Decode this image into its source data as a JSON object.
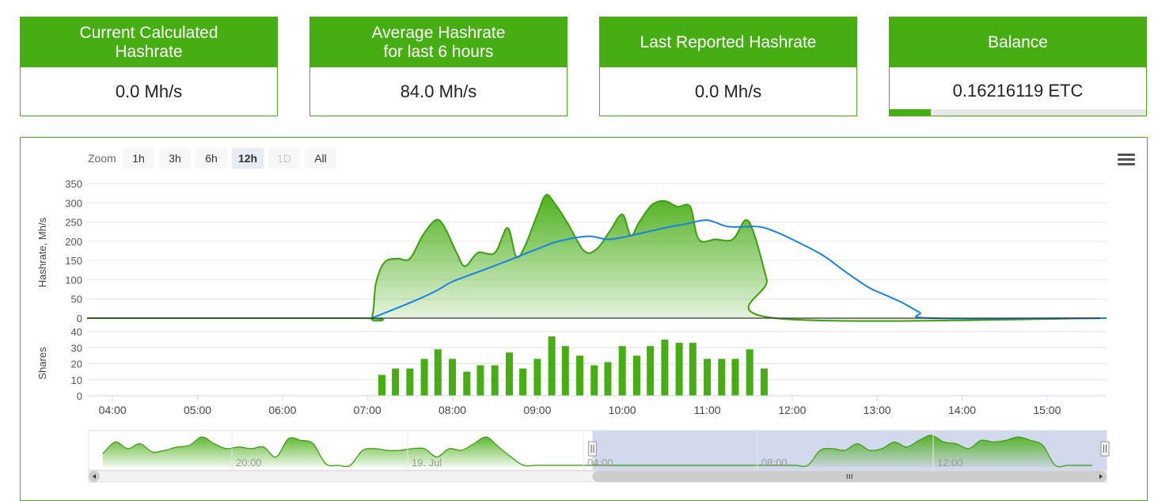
{
  "cards": [
    {
      "title": "Current Calculated\nHashrate",
      "value": "0.0 Mh/s"
    },
    {
      "title": "Average Hashrate\nfor last 6 hours",
      "value": "84.0 Mh/s"
    },
    {
      "title": "Last Reported Hashrate",
      "value": "0.0 Mh/s"
    },
    {
      "title": "Balance",
      "value": "0.16216119 ETC",
      "progress": 0.16
    }
  ],
  "colors": {
    "accent": "#46ad13",
    "average_line": "#1a82e0",
    "navigator_mask": "#cdd5ea"
  },
  "zoom": {
    "label": "Zoom",
    "buttons": [
      {
        "label": "1h",
        "state": "normal"
      },
      {
        "label": "3h",
        "state": "normal"
      },
      {
        "label": "6h",
        "state": "normal"
      },
      {
        "label": "12h",
        "state": "selected"
      },
      {
        "label": "1D",
        "state": "disabled"
      },
      {
        "label": "All",
        "state": "normal"
      }
    ]
  },
  "menu_icon": "hamburger-icon",
  "chart_data": [
    {
      "type": "area",
      "ylabel": "Hashrate, Mh/s",
      "ylim": [
        0,
        350
      ],
      "yticks": [
        0,
        50,
        100,
        150,
        200,
        250,
        300,
        350
      ],
      "xlim": [
        3.7,
        15.7
      ],
      "grid": true,
      "series": [
        {
          "kind": "area",
          "x": [
            3.7,
            6.9,
            7.05,
            7.1,
            7.2,
            7.35,
            7.5,
            7.65,
            7.8,
            7.9,
            8.05,
            8.15,
            8.3,
            8.5,
            8.65,
            8.75,
            8.85,
            9.0,
            9.1,
            9.2,
            9.35,
            9.55,
            9.7,
            9.85,
            10.0,
            10.1,
            10.2,
            10.35,
            10.5,
            10.65,
            10.8,
            10.9,
            11.1,
            11.3,
            11.45,
            11.55,
            11.7,
            11.8,
            15.7
          ],
          "y": [
            0,
            0,
            0,
            90,
            145,
            155,
            155,
            215,
            255,
            240,
            170,
            135,
            170,
            170,
            235,
            160,
            185,
            270,
            320,
            300,
            250,
            175,
            180,
            225,
            270,
            215,
            250,
            295,
            305,
            290,
            290,
            205,
            205,
            205,
            255,
            220,
            100,
            0,
            0
          ]
        },
        {
          "kind": "line",
          "x": [
            7.05,
            7.5,
            7.8,
            8.0,
            8.3,
            8.6,
            9.0,
            9.25,
            9.6,
            9.85,
            10.2,
            10.5,
            10.75,
            11.0,
            11.25,
            11.6,
            11.8,
            12.0,
            12.35,
            12.6,
            12.9,
            13.1,
            13.3,
            13.5,
            13.65,
            15.7
          ],
          "y": [
            0,
            40,
            70,
            95,
            120,
            145,
            180,
            200,
            213,
            205,
            220,
            235,
            245,
            255,
            238,
            238,
            225,
            205,
            165,
            125,
            80,
            60,
            40,
            15,
            0,
            0
          ]
        }
      ]
    },
    {
      "type": "bar",
      "ylabel": "Shares",
      "ylim": [
        0,
        40
      ],
      "yticks": [
        0,
        10,
        20,
        30,
        40
      ],
      "x": [
        7.17,
        7.33,
        7.5,
        7.67,
        7.83,
        8.0,
        8.17,
        8.33,
        8.5,
        8.67,
        8.83,
        9.0,
        9.17,
        9.33,
        9.5,
        9.67,
        9.83,
        10.0,
        10.17,
        10.33,
        10.5,
        10.67,
        10.83,
        11.0,
        11.17,
        11.33,
        11.5,
        11.67
      ],
      "values": [
        13,
        17,
        17,
        23,
        29,
        23,
        15,
        19,
        19,
        27,
        17,
        23,
        37,
        31,
        25,
        19,
        21,
        31,
        25,
        31,
        35,
        33,
        33,
        23,
        23,
        23,
        29,
        17
      ],
      "xticks": [
        "04:00",
        "05:00",
        "06:00",
        "07:00",
        "08:00",
        "09:00",
        "10:00",
        "11:00",
        "12:00",
        "13:00",
        "14:00",
        "15:00"
      ]
    },
    {
      "type": "area",
      "role": "navigator",
      "x": [
        0,
        1,
        2,
        3,
        4,
        5,
        6,
        7,
        8,
        9,
        10,
        11,
        12,
        13,
        14,
        15,
        16,
        17,
        18,
        19,
        20,
        21,
        22,
        23,
        24,
        25,
        26,
        27,
        28,
        29,
        30,
        31,
        32,
        33,
        34,
        35,
        36,
        37,
        38,
        39,
        40,
        41,
        42,
        43,
        44,
        45,
        46,
        47,
        48,
        49,
        50,
        51,
        52,
        53,
        54,
        55,
        56,
        57,
        58,
        59,
        60,
        61,
        62,
        63,
        64,
        65,
        66,
        67,
        68,
        69,
        70,
        71,
        72,
        73,
        74,
        75,
        76,
        77,
        78,
        79,
        80
      ],
      "y": [
        0.4,
        0.75,
        0.55,
        0.7,
        0.45,
        0.5,
        0.6,
        0.65,
        0.9,
        0.7,
        0.55,
        0.6,
        0.55,
        0.6,
        0.3,
        0.85,
        0.8,
        0.7,
        0.1,
        0.05,
        0.05,
        0.5,
        0.55,
        0.5,
        0.5,
        0.55,
        0.55,
        0.3,
        0.55,
        0.5,
        0.7,
        0.9,
        0.6,
        0.3,
        0.05,
        0.05,
        0.05,
        0.05,
        0.05,
        0.05,
        0.05,
        0.05,
        0.05,
        0.05,
        0.05,
        0.05,
        0.05,
        0.05,
        0.05,
        0.05,
        0.05,
        0.05,
        0.05,
        0.05,
        0.05,
        0.05,
        0.05,
        0.05,
        0.5,
        0.55,
        0.5,
        0.7,
        0.5,
        0.55,
        0.75,
        0.6,
        0.8,
        0.95,
        0.75,
        0.7,
        0.55,
        0.8,
        0.75,
        0.8,
        0.9,
        0.8,
        0.65,
        0.05,
        0.05,
        0.05,
        0.05
      ],
      "labels": [
        "20:00",
        "19. Jul",
        "04:00",
        "08:00",
        "12:00"
      ],
      "selected_range": [
        0.495,
        1.0
      ]
    }
  ]
}
